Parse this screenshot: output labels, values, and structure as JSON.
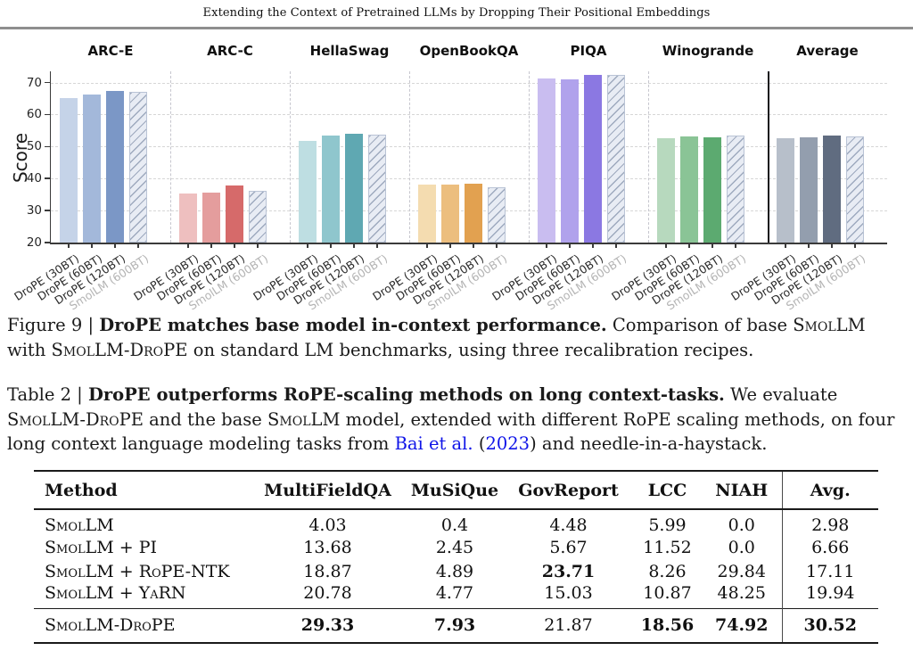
{
  "page": {
    "running_title": "Extending the Context of Pretrained LLMs by Dropping Their Positional Embeddings"
  },
  "chart_data": {
    "type": "bar",
    "title": "Figure 9 benchmark comparison",
    "ylabel": "Score",
    "ylim": [
      20,
      73.5
    ],
    "yticks": [
      20,
      30,
      40,
      50,
      60,
      70
    ],
    "grid": true,
    "categories": [
      "DroPE (30BT)",
      "DroPE (60BT)",
      "DroPE (120BT)",
      "SmolLM (600BT)"
    ],
    "panels": [
      {
        "name": "ARC-E",
        "values": [
          65.1,
          66.2,
          67.4,
          67.2
        ],
        "colors": [
          "#c5d3e8",
          "#a3b8da",
          "#7b97c6"
        ]
      },
      {
        "name": "ARC-C",
        "values": [
          35.3,
          35.7,
          37.8,
          36.1
        ],
        "colors": [
          "#eebfbf",
          "#e49d9d",
          "#d66a6a"
        ]
      },
      {
        "name": "HellaSwag",
        "values": [
          51.8,
          53.3,
          54.1,
          53.8
        ],
        "colors": [
          "#bedee2",
          "#8fc6cd",
          "#5fa8b2"
        ]
      },
      {
        "name": "OpenBookQA",
        "values": [
          38.0,
          38.2,
          38.4,
          37.2
        ],
        "colors": [
          "#f4dcb0",
          "#ecbe7e",
          "#e2a150"
        ]
      },
      {
        "name": "PIQA",
        "values": [
          71.3,
          71.1,
          72.3,
          72.5
        ],
        "colors": [
          "#c9bdf0",
          "#b0a2ec",
          "#8b78e2"
        ]
      },
      {
        "name": "Winogrande",
        "values": [
          52.5,
          53.1,
          52.9,
          53.5
        ],
        "colors": [
          "#b7d9be",
          "#8ac496",
          "#5caa70"
        ]
      },
      {
        "name": "Average",
        "values": [
          52.6,
          53.0,
          53.4,
          53.1
        ],
        "colors": [
          "#b7bfca",
          "#939eae",
          "#606c80"
        ]
      }
    ],
    "baseline_bar_fill": "#e8ecf4",
    "baseline_hatch_color": "#9aa6bc",
    "baseline_label_color": "#b4b4b4",
    "axis_color": "#3a3a3a"
  },
  "figure_caption": {
    "segments": [
      {
        "t": "Figure 9 | ",
        "s": "n"
      },
      {
        "t": "DroPE matches base model in-context performance.",
        "s": "b"
      },
      {
        "t": " Comparison of base ",
        "s": "n"
      },
      {
        "t": "SmolLM",
        "s": "sc"
      },
      {
        "t": " with ",
        "s": "n"
      },
      {
        "t": "SmolLM-DroPE",
        "s": "sc"
      },
      {
        "t": " on standard LM benchmarks, using three recalibration recipes.",
        "s": "n"
      }
    ]
  },
  "table_caption": {
    "segments": [
      {
        "t": "Table 2 | ",
        "s": "n"
      },
      {
        "t": "DroPE outperforms RoPE-scaling methods on long context-tasks.",
        "s": "b"
      },
      {
        "t": " We evaluate ",
        "s": "n"
      },
      {
        "t": "SmolLM-DroPE",
        "s": "sc"
      },
      {
        "t": " and the base ",
        "s": "n"
      },
      {
        "t": "SmolLM",
        "s": "sc"
      },
      {
        "t": " model, extended with different RoPE scaling methods, on four long context language modeling tasks from ",
        "s": "n"
      },
      {
        "t": "Bai et al.",
        "s": "link"
      },
      {
        "t": " (",
        "s": "n"
      },
      {
        "t": "2023",
        "s": "link"
      },
      {
        "t": ") and needle-in-a-haystack.",
        "s": "n"
      }
    ]
  },
  "table": {
    "headers": [
      "Method",
      "MultiFieldQA",
      "MuSiQue",
      "GovReport",
      "LCC",
      "NIAH",
      "Avg."
    ],
    "rows": [
      {
        "method": "SmolLM",
        "values": [
          "4.03",
          "0.4",
          "4.48",
          "5.99",
          "0.0",
          "2.98"
        ],
        "bold": [
          0,
          0,
          0,
          0,
          0,
          0
        ]
      },
      {
        "method": "SmolLM + PI",
        "values": [
          "13.68",
          "2.45",
          "5.67",
          "11.52",
          "0.0",
          "6.66"
        ],
        "bold": [
          0,
          0,
          0,
          0,
          0,
          0
        ]
      },
      {
        "method": "SmolLM + RoPE-NTK",
        "values": [
          "18.87",
          "4.89",
          "23.71",
          "8.26",
          "29.84",
          "17.11"
        ],
        "bold": [
          0,
          0,
          1,
          0,
          0,
          0
        ]
      },
      {
        "method": "SmolLM + YaRN",
        "values": [
          "20.78",
          "4.77",
          "15.03",
          "10.87",
          "48.25",
          "19.94"
        ],
        "bold": [
          0,
          0,
          0,
          0,
          0,
          0
        ]
      }
    ],
    "footer_row": {
      "method": "SmolLM-DroPE",
      "values": [
        "29.33",
        "7.93",
        "21.87",
        "18.56",
        "74.92",
        "30.52"
      ],
      "bold": [
        1,
        1,
        0,
        1,
        1,
        1
      ]
    }
  }
}
